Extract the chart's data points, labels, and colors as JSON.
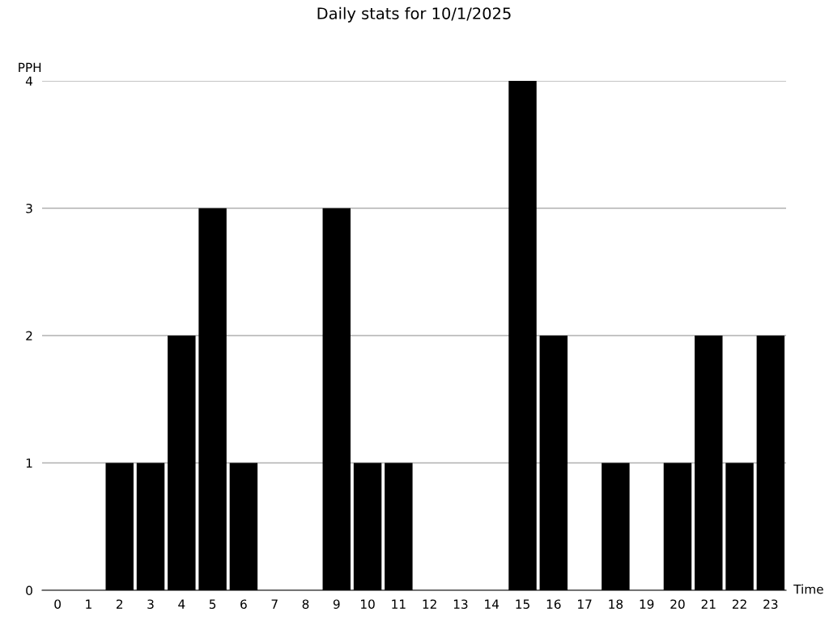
{
  "chart_data": {
    "type": "bar",
    "title": "Daily stats for 10/1/2025",
    "xlabel": "Time",
    "ylabel": "PPH",
    "categories": [
      "0",
      "1",
      "2",
      "3",
      "4",
      "5",
      "6",
      "7",
      "8",
      "9",
      "10",
      "11",
      "12",
      "13",
      "14",
      "15",
      "16",
      "17",
      "18",
      "19",
      "20",
      "21",
      "22",
      "23"
    ],
    "values": [
      0,
      0,
      1,
      1,
      2,
      3,
      1,
      0,
      0,
      3,
      1,
      1,
      0,
      0,
      0,
      4,
      2,
      0,
      1,
      0,
      1,
      2,
      1,
      2
    ],
    "color": "#000000",
    "ylim": [
      0,
      4
    ],
    "yticks": [
      0,
      1,
      2,
      3,
      4
    ],
    "grid": "y",
    "legend": false
  }
}
